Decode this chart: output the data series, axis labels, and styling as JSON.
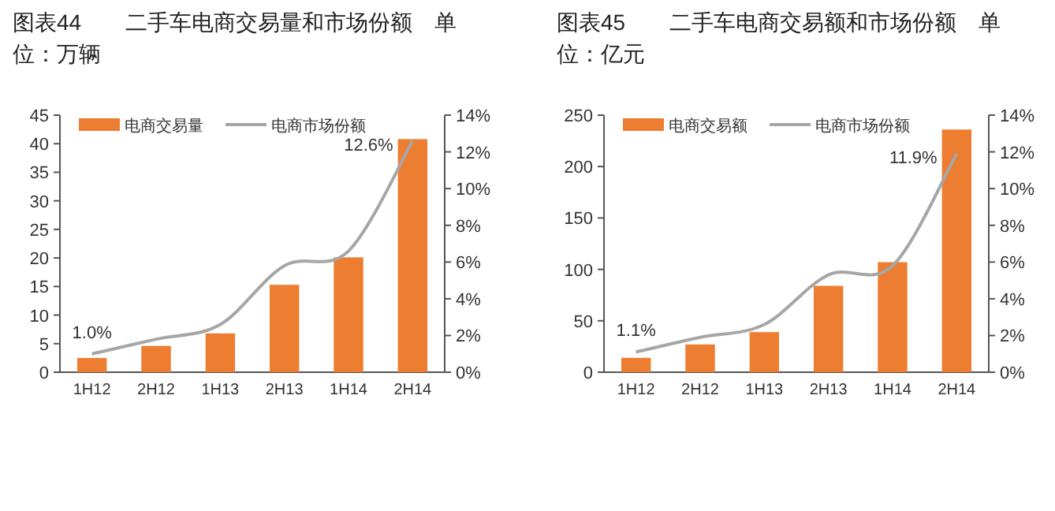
{
  "chart_data": [
    {
      "type": "bar",
      "title": "图表44　　二手车电商交易量和市场份额　单位：万辆",
      "categories": [
        "1H12",
        "2H12",
        "1H13",
        "2H13",
        "1H14",
        "2H14"
      ],
      "legend": "top",
      "series": [
        {
          "name": "电商交易量",
          "type": "bar",
          "color": "#ed7d31",
          "values": [
            2.5,
            4.6,
            6.8,
            15.3,
            20.1,
            40.8
          ]
        },
        {
          "name": "电商市场份额",
          "type": "line",
          "axis": "y2",
          "color": "#a6a6a6",
          "values": [
            1.0,
            1.8,
            2.6,
            5.8,
            6.6,
            12.6
          ],
          "value_labels": [
            "1.0%",
            null,
            null,
            null,
            null,
            "12.6%"
          ]
        }
      ],
      "ylim": [
        0,
        45
      ],
      "yticks": [
        0,
        5,
        10,
        15,
        20,
        25,
        30,
        35,
        40,
        45
      ],
      "y2lim": [
        0,
        14
      ],
      "y2ticks": [
        {
          "value": 0,
          "label": "0%"
        },
        {
          "value": 2,
          "label": "2%"
        },
        {
          "value": 4,
          "label": "4%"
        },
        {
          "value": 6,
          "label": "6%"
        },
        {
          "value": 8,
          "label": "8%"
        },
        {
          "value": 10,
          "label": "10%"
        },
        {
          "value": 12,
          "label": "12%"
        },
        {
          "value": 14,
          "label": "14%"
        }
      ]
    },
    {
      "type": "bar",
      "title": "图表45　　二手车电商交易额和市场份额　单位：亿元",
      "categories": [
        "1H12",
        "2H12",
        "1H13",
        "2H13",
        "1H14",
        "2H14"
      ],
      "legend": "top",
      "series": [
        {
          "name": "电商交易额",
          "type": "bar",
          "color": "#ed7d31",
          "values": [
            14,
            27,
            39,
            84,
            107,
            236
          ]
        },
        {
          "name": "电商市场份额",
          "type": "line",
          "axis": "y2",
          "color": "#a6a6a6",
          "values": [
            1.1,
            1.9,
            2.6,
            5.3,
            5.8,
            11.9
          ],
          "value_labels": [
            "1.1%",
            null,
            null,
            null,
            null,
            "11.9%"
          ]
        }
      ],
      "ylim": [
        0,
        250
      ],
      "yticks": [
        0,
        50,
        100,
        150,
        200,
        250
      ],
      "y2lim": [
        0,
        14
      ],
      "y2ticks": [
        {
          "value": 0,
          "label": "0%"
        },
        {
          "value": 2,
          "label": "2%"
        },
        {
          "value": 4,
          "label": "4%"
        },
        {
          "value": 6,
          "label": "6%"
        },
        {
          "value": 8,
          "label": "8%"
        },
        {
          "value": 10,
          "label": "10%"
        },
        {
          "value": 12,
          "label": "12%"
        },
        {
          "value": 14,
          "label": "14%"
        }
      ]
    }
  ]
}
